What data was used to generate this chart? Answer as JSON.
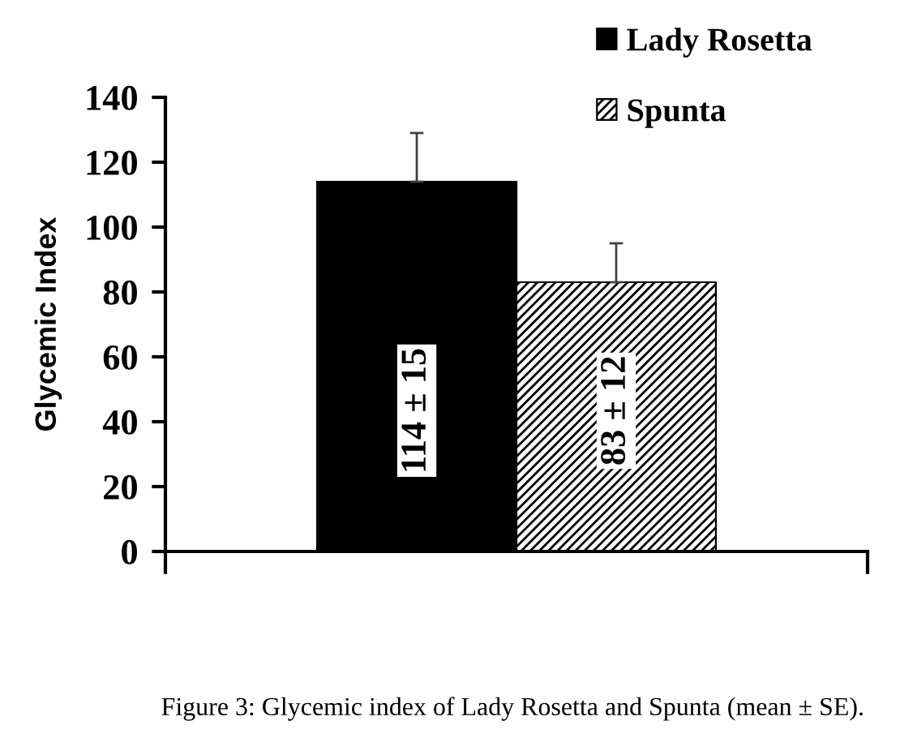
{
  "chart_data": {
    "type": "bar",
    "categories": [
      null
    ],
    "series": [
      {
        "name": "Lady Rosetta",
        "color": "#000000",
        "values": [
          114
        ],
        "errors": [
          [
            114,
            129
          ]
        ],
        "value_labels": [
          "114 ± 15"
        ]
      },
      {
        "name": "Spunta",
        "color": "#000000",
        "values": [
          83
        ],
        "errors": [
          [
            83,
            95
          ]
        ],
        "value_labels": [
          "83 ± 12"
        ]
      }
    ],
    "ylabel": "Glycemic Index",
    "ylim": [
      0,
      140
    ],
    "yticks": [
      0,
      20,
      40,
      60,
      80,
      100,
      120,
      140
    ],
    "legend": "top right",
    "annotations": [
      "Figure 3: Glycemic index of Lady Rosetta and Spunta (mean ± SE)."
    ]
  }
}
